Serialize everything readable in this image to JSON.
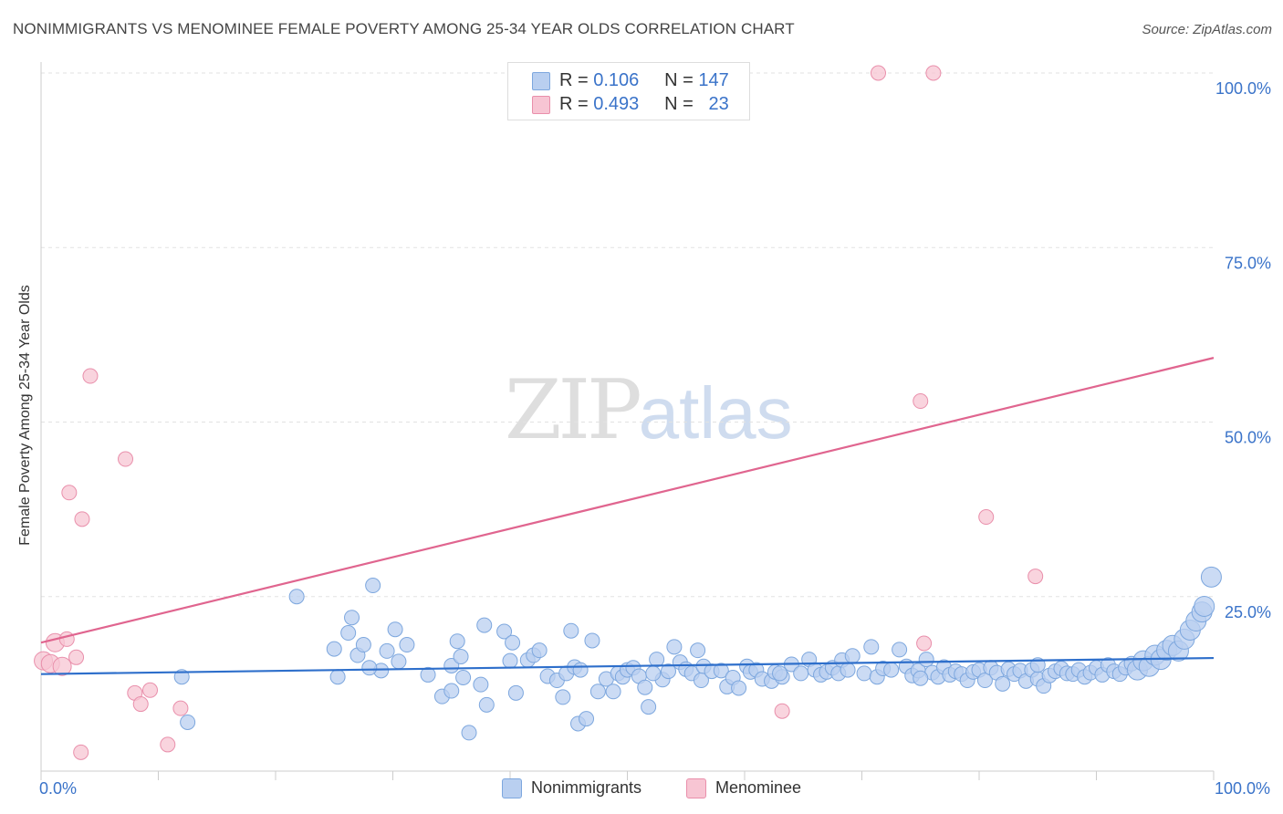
{
  "header": {
    "title": "NONIMMIGRANTS VS MENOMINEE FEMALE POVERTY AMONG 25-34 YEAR OLDS CORRELATION CHART",
    "source": "Source: ZipAtlas.com"
  },
  "watermark": {
    "zip": "ZIP",
    "atlas": "atlas"
  },
  "legend": {
    "r_label": "R =",
    "n_label": "N =",
    "series": [
      {
        "name": "Nonimmigrants",
        "r": "0.106",
        "n": "147",
        "fill": "#b9cff0",
        "stroke": "#7da7de"
      },
      {
        "name": "Menominee",
        "r": "0.493",
        "n": "23",
        "fill": "#f7c5d3",
        "stroke": "#e98fab"
      }
    ]
  },
  "colors": {
    "blue_line": "#2e6fcb",
    "pink_line": "#e0658f",
    "blue_point_fill": "#b9cff0",
    "blue_point_stroke": "#7da7de",
    "pink_point_fill": "#f7c5d3",
    "pink_point_stroke": "#e98fab",
    "tick_label": "#3a73c9",
    "grid": "#e2e2e2"
  },
  "chart_data": {
    "type": "scatter",
    "title": "NONIMMIGRANTS VS MENOMINEE FEMALE POVERTY AMONG 25-34 YEAR OLDS CORRELATION CHART",
    "xlabel": "",
    "ylabel": "Female Poverty Among 25-34 Year Olds",
    "xlim": [
      0,
      100
    ],
    "ylim": [
      0,
      100
    ],
    "x_tick_labels": [
      {
        "value": 0,
        "label": "0.0%"
      },
      {
        "value": 100,
        "label": "100.0%"
      }
    ],
    "y_tick_labels": [
      {
        "value": 100,
        "label": "100.0%"
      },
      {
        "value": 75,
        "label": "75.0%"
      },
      {
        "value": 50,
        "label": "50.0%"
      },
      {
        "value": 25,
        "label": "25.0%"
      }
    ],
    "legend_position": "top-center",
    "series": [
      {
        "name": "Nonimmigrants",
        "trend": {
          "x": [
            0,
            100
          ],
          "y": [
            13.9,
            16.2
          ]
        },
        "points": [
          [
            12.5,
            7.0
          ],
          [
            21.8,
            25.0
          ],
          [
            25.0,
            17.5
          ],
          [
            25.3,
            13.5
          ],
          [
            26.2,
            19.8
          ],
          [
            26.5,
            22.0
          ],
          [
            27.0,
            16.6
          ],
          [
            27.5,
            18.1
          ],
          [
            28.3,
            26.6
          ],
          [
            29.0,
            14.4
          ],
          [
            29.5,
            17.2
          ],
          [
            30.2,
            20.3
          ],
          [
            30.5,
            15.7
          ],
          [
            31.2,
            18.1
          ],
          [
            33.0,
            13.8
          ],
          [
            34.2,
            10.7
          ],
          [
            35.0,
            11.5
          ],
          [
            35.0,
            15.1
          ],
          [
            35.5,
            18.6
          ],
          [
            36.0,
            13.4
          ],
          [
            36.5,
            5.5
          ],
          [
            37.5,
            12.4
          ],
          [
            38.0,
            9.5
          ],
          [
            37.8,
            20.9
          ],
          [
            39.5,
            20.0
          ],
          [
            40.2,
            18.4
          ],
          [
            40.0,
            15.8
          ],
          [
            40.5,
            11.2
          ],
          [
            41.5,
            15.9
          ],
          [
            42.0,
            16.6
          ],
          [
            42.5,
            17.3
          ],
          [
            43.2,
            13.6
          ],
          [
            44.0,
            13.0
          ],
          [
            44.5,
            10.6
          ],
          [
            44.8,
            14.0
          ],
          [
            45.2,
            20.1
          ],
          [
            45.5,
            14.9
          ],
          [
            46.0,
            14.5
          ],
          [
            45.8,
            6.8
          ],
          [
            46.5,
            7.5
          ],
          [
            47.0,
            18.7
          ],
          [
            47.5,
            11.4
          ],
          [
            48.2,
            13.2
          ],
          [
            48.8,
            11.4
          ],
          [
            49.2,
            14.0
          ],
          [
            49.6,
            13.5
          ],
          [
            50.0,
            14.5
          ],
          [
            50.5,
            14.8
          ],
          [
            51.0,
            13.6
          ],
          [
            51.5,
            12.0
          ],
          [
            51.8,
            9.2
          ],
          [
            52.5,
            16.0
          ],
          [
            53.0,
            13.1
          ],
          [
            53.5,
            14.3
          ],
          [
            54.0,
            17.8
          ],
          [
            54.5,
            15.6
          ],
          [
            55.0,
            14.6
          ],
          [
            55.5,
            14.0
          ],
          [
            56.0,
            17.3
          ],
          [
            56.5,
            15.0
          ],
          [
            56.3,
            13.0
          ],
          [
            57.2,
            14.3
          ],
          [
            58.0,
            14.4
          ],
          [
            58.5,
            12.1
          ],
          [
            59.0,
            13.4
          ],
          [
            59.5,
            11.9
          ],
          [
            60.2,
            15.0
          ],
          [
            60.5,
            14.2
          ],
          [
            61.0,
            14.5
          ],
          [
            61.5,
            13.2
          ],
          [
            62.3,
            12.9
          ],
          [
            62.6,
            14.2
          ],
          [
            63.2,
            13.5
          ],
          [
            64.0,
            15.3
          ],
          [
            64.8,
            14.0
          ],
          [
            65.5,
            16.0
          ],
          [
            66.0,
            14.5
          ],
          [
            66.5,
            13.8
          ],
          [
            67.0,
            14.2
          ],
          [
            67.5,
            14.8
          ],
          [
            68.0,
            14.0
          ],
          [
            68.3,
            15.9
          ],
          [
            68.8,
            14.5
          ],
          [
            69.2,
            16.5
          ],
          [
            70.2,
            14.0
          ],
          [
            70.8,
            17.8
          ],
          [
            71.3,
            13.5
          ],
          [
            71.8,
            14.7
          ],
          [
            72.5,
            14.5
          ],
          [
            73.2,
            17.4
          ],
          [
            73.8,
            15.0
          ],
          [
            74.3,
            13.7
          ],
          [
            74.8,
            14.4
          ],
          [
            75.5,
            16.0
          ],
          [
            76.0,
            14.1
          ],
          [
            76.5,
            13.5
          ],
          [
            77.0,
            14.9
          ],
          [
            77.5,
            13.8
          ],
          [
            78.0,
            14.3
          ],
          [
            78.5,
            13.9
          ],
          [
            79.0,
            13.0
          ],
          [
            79.5,
            14.2
          ],
          [
            80.0,
            14.5
          ],
          [
            80.5,
            13.0
          ],
          [
            81.0,
            14.8
          ],
          [
            81.5,
            14.1
          ],
          [
            82.0,
            12.5
          ],
          [
            82.5,
            14.6
          ],
          [
            83.0,
            13.9
          ],
          [
            83.5,
            14.4
          ],
          [
            84.0,
            12.9
          ],
          [
            84.5,
            14.5
          ],
          [
            85.0,
            13.2
          ],
          [
            85.5,
            12.2
          ],
          [
            86.0,
            13.7
          ],
          [
            86.5,
            14.3
          ],
          [
            87.0,
            14.7
          ],
          [
            87.5,
            14.0
          ],
          [
            88.0,
            13.9
          ],
          [
            88.5,
            14.5
          ],
          [
            89.0,
            13.5
          ],
          [
            89.5,
            14.1
          ],
          [
            90.0,
            14.8
          ],
          [
            90.5,
            13.8
          ],
          [
            91.0,
            15.2
          ],
          [
            91.5,
            14.3
          ],
          [
            92.0,
            13.9
          ],
          [
            92.5,
            14.8
          ],
          [
            93.0,
            15.4
          ],
          [
            93.5,
            14.5
          ],
          [
            94.0,
            15.8
          ],
          [
            94.5,
            15.0
          ],
          [
            95.0,
            16.6
          ],
          [
            95.5,
            16.0
          ],
          [
            96.0,
            17.3
          ],
          [
            96.5,
            18.0
          ],
          [
            97.0,
            17.2
          ],
          [
            97.5,
            18.9
          ],
          [
            98.0,
            20.2
          ],
          [
            98.5,
            21.5
          ],
          [
            99.0,
            22.8
          ],
          [
            99.2,
            23.6
          ],
          [
            99.8,
            27.8
          ],
          [
            12.0,
            13.5
          ],
          [
            28.0,
            14.8
          ],
          [
            35.8,
            16.4
          ],
          [
            52.2,
            14.0
          ],
          [
            63.0,
            14.0
          ],
          [
            75.0,
            13.3
          ],
          [
            85.0,
            15.2
          ]
        ]
      },
      {
        "name": "Menominee",
        "trend": {
          "x": [
            0,
            100
          ],
          "y": [
            18.4,
            59.2
          ]
        },
        "points": [
          [
            0.2,
            15.8
          ],
          [
            0.8,
            15.4
          ],
          [
            1.2,
            18.4
          ],
          [
            1.8,
            15.0
          ],
          [
            2.2,
            18.9
          ],
          [
            3.0,
            16.3
          ],
          [
            3.4,
            2.7
          ],
          [
            3.5,
            36.1
          ],
          [
            4.2,
            56.6
          ],
          [
            2.4,
            39.9
          ],
          [
            7.2,
            44.7
          ],
          [
            8.0,
            11.2
          ],
          [
            8.5,
            9.6
          ],
          [
            9.3,
            11.6
          ],
          [
            10.8,
            3.8
          ],
          [
            11.9,
            9.0
          ],
          [
            71.4,
            100.0
          ],
          [
            76.1,
            100.0
          ],
          [
            75.0,
            53.0
          ],
          [
            80.6,
            36.4
          ],
          [
            84.8,
            27.9
          ],
          [
            75.3,
            18.3
          ],
          [
            63.2,
            8.6
          ]
        ]
      }
    ]
  }
}
